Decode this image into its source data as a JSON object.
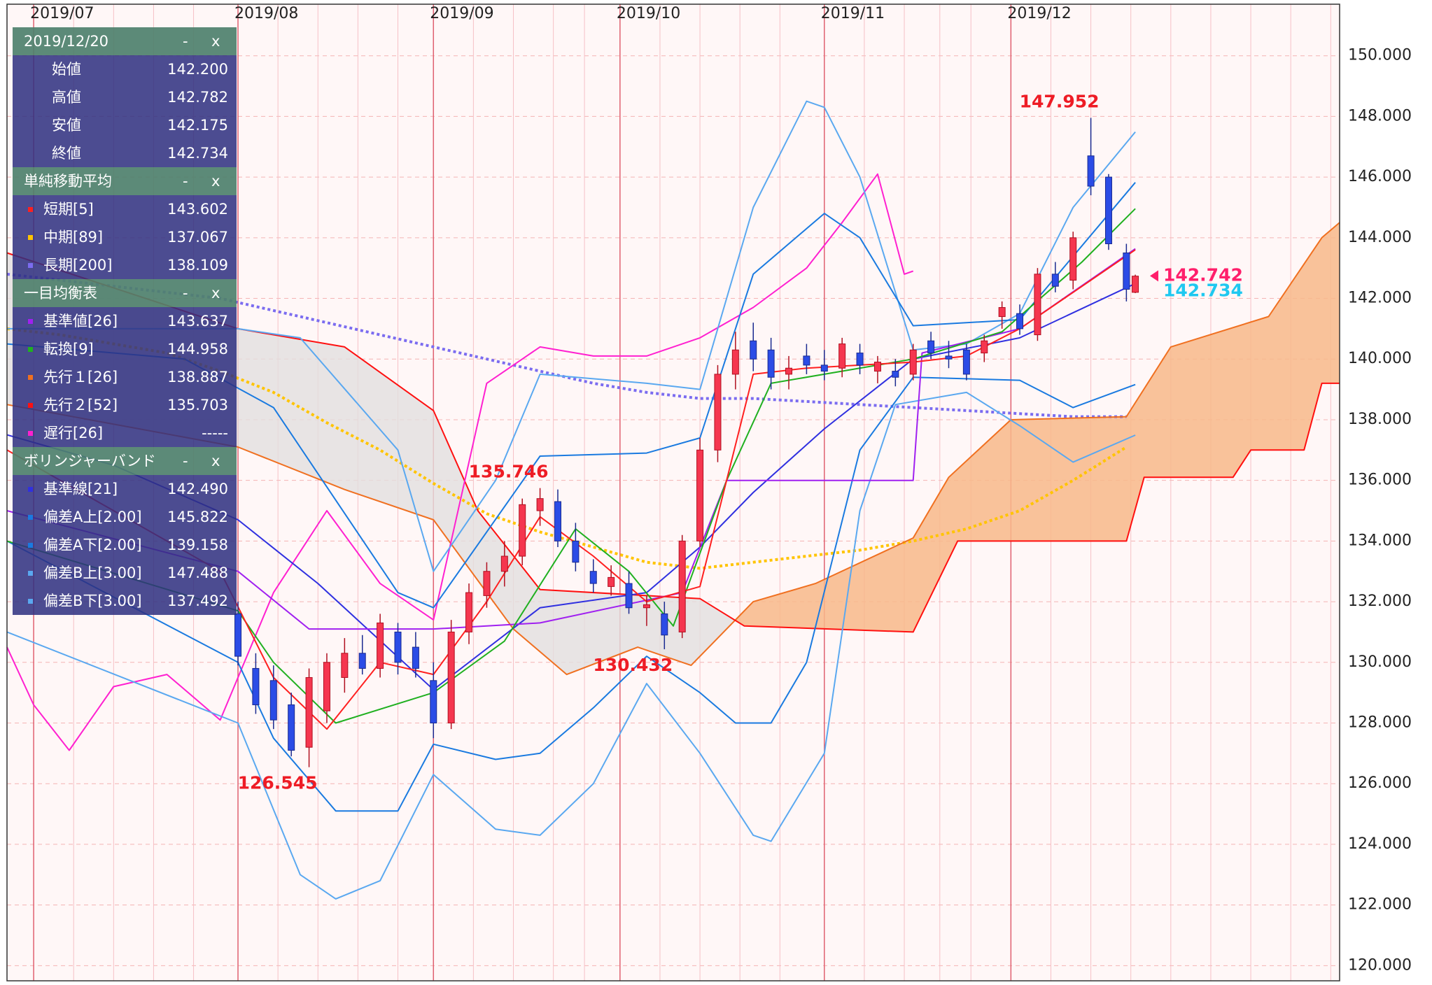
{
  "chart_data": {
    "type": "candlestick",
    "xlim": [
      0,
      150
    ],
    "ylim": [
      119.5,
      151.7
    ],
    "xticks": [
      {
        "value": 3,
        "label": "2019/07"
      },
      {
        "value": 26,
        "label": "2019/08"
      },
      {
        "value": 48,
        "label": "2019/09"
      },
      {
        "value": 69,
        "label": "2019/10"
      },
      {
        "value": 92,
        "label": "2019/11"
      },
      {
        "value": 113,
        "label": "2019/12"
      }
    ],
    "xminorticks": [
      7.5,
      12,
      16.5,
      21,
      30.5,
      35,
      39.5,
      44,
      52.5,
      57,
      61.5,
      65,
      73.5,
      78,
      82.5,
      87,
      96.5,
      101,
      105,
      108.5,
      117.5,
      122,
      126.5,
      131,
      135.5,
      140,
      144.5,
      149
    ],
    "yticks": [
      {
        "value": 120,
        "label": "120.000"
      },
      {
        "value": 122,
        "label": "122.000"
      },
      {
        "value": 124,
        "label": "124.000"
      },
      {
        "value": 126,
        "label": "126.000"
      },
      {
        "value": 128,
        "label": "128.000"
      },
      {
        "value": 130,
        "label": "130.000"
      },
      {
        "value": 132,
        "label": "132.000"
      },
      {
        "value": 134,
        "label": "134.000"
      },
      {
        "value": 136,
        "label": "136.000"
      },
      {
        "value": 138,
        "label": "138.000"
      },
      {
        "value": 140,
        "label": "140.000"
      },
      {
        "value": 142,
        "label": "142.000"
      },
      {
        "value": 144,
        "label": "144.000"
      },
      {
        "value": 146,
        "label": "146.000"
      },
      {
        "value": 148,
        "label": "148.000"
      },
      {
        "value": 150,
        "label": "150.000"
      }
    ],
    "grid": true,
    "up_color": "#f5364f",
    "down_color": "#2b4ce6",
    "x": [
      26,
      28,
      30,
      32,
      34,
      36,
      38,
      40,
      42,
      44,
      46,
      48,
      50,
      52,
      54,
      56,
      58,
      60,
      62,
      64,
      66,
      68,
      70,
      72,
      74,
      76,
      78,
      80,
      82,
      84,
      86,
      88,
      90,
      92,
      94,
      96,
      98,
      100,
      102,
      104,
      106,
      108,
      110,
      112,
      114,
      116,
      118,
      120,
      122,
      124,
      126,
      127
    ],
    "open": [
      131.6,
      129.8,
      129.4,
      128.6,
      127.2,
      128.4,
      129.5,
      130.3,
      129.8,
      131.0,
      130.5,
      129.4,
      128.0,
      131.0,
      132.2,
      133.0,
      133.5,
      135.0,
      135.3,
      134.0,
      133.0,
      132.5,
      132.6,
      131.8,
      131.6,
      131.0,
      134.0,
      137.0,
      139.5,
      140.6,
      140.3,
      139.5,
      140.1,
      139.8,
      139.7,
      140.2,
      139.6,
      139.6,
      139.5,
      140.6,
      140.1,
      140.3,
      140.2,
      141.4,
      141.5,
      140.8,
      142.8,
      142.6,
      146.7,
      146.0,
      143.5,
      142.2
    ],
    "high": [
      132.0,
      130.3,
      129.9,
      129.0,
      129.8,
      130.3,
      130.8,
      130.9,
      131.6,
      131.3,
      131.0,
      130.0,
      131.4,
      132.6,
      133.3,
      134.0,
      135.4,
      135.746,
      135.7,
      134.6,
      133.4,
      133.2,
      133.0,
      132.2,
      132.0,
      134.2,
      137.4,
      139.8,
      140.9,
      141.2,
      140.7,
      140.1,
      140.5,
      140.3,
      140.7,
      140.5,
      140.1,
      140.0,
      140.5,
      140.9,
      140.6,
      140.5,
      140.8,
      141.9,
      141.8,
      143.0,
      143.2,
      144.2,
      147.952,
      146.1,
      143.8,
      142.782
    ],
    "low": [
      129.9,
      128.3,
      127.8,
      126.9,
      126.545,
      128.0,
      129.0,
      129.6,
      129.5,
      129.6,
      129.5,
      127.5,
      127.8,
      130.6,
      131.8,
      132.5,
      133.2,
      134.5,
      133.8,
      133.0,
      132.3,
      132.2,
      131.6,
      131.2,
      130.432,
      130.8,
      133.8,
      136.6,
      139.0,
      139.6,
      139.0,
      139.0,
      139.5,
      139.3,
      139.4,
      139.5,
      139.2,
      139.1,
      139.3,
      140.0,
      139.7,
      139.3,
      139.9,
      141.0,
      140.8,
      140.6,
      142.2,
      142.3,
      145.4,
      143.6,
      141.9,
      142.175
    ],
    "close": [
      130.2,
      128.6,
      128.1,
      127.1,
      129.5,
      130.0,
      130.3,
      129.8,
      131.3,
      130.0,
      129.8,
      128.0,
      131.0,
      132.3,
      133.0,
      133.5,
      135.2,
      135.4,
      134.0,
      133.3,
      132.6,
      132.8,
      131.8,
      131.9,
      130.9,
      134.0,
      137.0,
      139.5,
      140.3,
      140.0,
      139.4,
      139.7,
      139.8,
      139.6,
      140.5,
      139.8,
      139.9,
      139.4,
      140.3,
      140.2,
      140.0,
      139.5,
      140.6,
      141.7,
      141.0,
      142.8,
      142.4,
      144.0,
      145.7,
      143.8,
      142.3,
      142.734
    ],
    "series": [
      {
        "color": "#7b6cf0",
        "dash": "dotted",
        "x": [
          0,
          6,
          12,
          18,
          24,
          30,
          36,
          42,
          48,
          54,
          60,
          66,
          72,
          78,
          84,
          90,
          96,
          102,
          108,
          114,
          120,
          126
        ],
        "values": [
          142.8,
          142.6,
          142.4,
          142.2,
          142.0,
          141.6,
          141.2,
          140.8,
          140.4,
          140.0,
          139.6,
          139.2,
          138.9,
          138.7,
          138.7,
          138.6,
          138.5,
          138.4,
          138.3,
          138.2,
          138.1,
          138.1
        ]
      },
      {
        "color": "#ffc400",
        "dash": "dotted",
        "x": [
          0,
          6,
          12,
          18,
          24,
          30,
          36,
          42,
          48,
          54,
          60,
          66,
          72,
          78,
          84,
          90,
          96,
          102,
          108,
          114,
          120,
          126
        ],
        "values": [
          141.0,
          140.8,
          140.5,
          140.2,
          139.6,
          138.9,
          137.9,
          137.0,
          135.9,
          134.9,
          134.3,
          133.8,
          133.3,
          133.1,
          133.3,
          133.5,
          133.7,
          134.0,
          134.4,
          135.0,
          136.0,
          137.1
        ]
      },
      {
        "color": "#f07020",
        "cloud": "a",
        "x": [
          0,
          26,
          38,
          48,
          57,
          63,
          71,
          77,
          84,
          91,
          102,
          106,
          113,
          126,
          131,
          142,
          148,
          150
        ],
        "values": [
          138.5,
          137.1,
          135.7,
          134.7,
          131.1,
          129.6,
          130.5,
          129.9,
          132.0,
          132.6,
          134.1,
          136.1,
          138.0,
          138.1,
          140.4,
          141.4,
          144.0,
          144.5
        ]
      },
      {
        "color": "#ff1010",
        "cloud": "b",
        "x": [
          0,
          26,
          38,
          48,
          53,
          60,
          78,
          83,
          102,
          107,
          126,
          128,
          138,
          140,
          146,
          148,
          150
        ],
        "values": [
          143.5,
          141.0,
          140.4,
          138.3,
          135.0,
          132.4,
          132.1,
          131.2,
          131.0,
          134.0,
          134.0,
          136.1,
          136.1,
          137.0,
          137.0,
          139.2,
          139.2
        ]
      },
      {
        "color": "#ff20d0",
        "x": [
          0,
          3,
          7,
          12,
          18,
          24,
          30,
          36,
          42,
          48,
          54,
          60,
          66,
          72,
          78,
          84,
          90,
          94,
          98,
          101,
          102
        ],
        "values": [
          130.5,
          128.6,
          127.1,
          129.2,
          129.6,
          128.1,
          132.3,
          135.0,
          132.6,
          131.4,
          139.2,
          140.4,
          140.1,
          140.1,
          140.7,
          141.7,
          143.0,
          144.5,
          146.1,
          142.8,
          142.9
        ]
      },
      {
        "color": "#5aa8f0",
        "x": [
          0,
          26,
          33,
          44,
          48,
          55,
          60,
          72,
          78,
          84,
          90,
          92,
          96,
          102,
          108,
          114,
          120,
          127
        ],
        "values": [
          141.0,
          141.0,
          140.7,
          137.0,
          133.0,
          136.0,
          139.5,
          139.2,
          139.0,
          145.0,
          148.5,
          148.3,
          146.0,
          140.3,
          140.5,
          141.5,
          145.0,
          147.488
        ]
      },
      {
        "color": "#5aa8f0",
        "x": [
          0,
          26,
          33,
          37,
          42,
          48,
          55,
          60,
          66,
          72,
          78,
          84,
          86,
          92,
          96,
          100,
          108,
          114,
          120,
          127
        ],
        "values": [
          131.0,
          128.0,
          123.0,
          122.2,
          122.8,
          126.3,
          124.5,
          124.3,
          126.0,
          129.3,
          127.0,
          124.3,
          124.1,
          127.0,
          135.0,
          138.5,
          138.9,
          137.8,
          136.6,
          137.492
        ]
      },
      {
        "color": "#1a7ae0",
        "x": [
          0,
          20,
          30,
          44,
          48,
          60,
          72,
          78,
          84,
          92,
          96,
          102,
          114,
          127
        ],
        "values": [
          140.5,
          140.0,
          138.4,
          132.3,
          131.8,
          136.8,
          136.9,
          137.4,
          142.8,
          144.8,
          144.0,
          141.1,
          141.3,
          145.822
        ]
      },
      {
        "color": "#1a7ae0",
        "x": [
          0,
          26,
          30,
          37,
          44,
          48,
          55,
          60,
          66,
          72,
          78,
          82,
          86,
          90,
          96,
          102,
          114,
          120,
          127
        ],
        "values": [
          134.0,
          130.0,
          127.5,
          125.1,
          125.1,
          127.3,
          126.8,
          127.0,
          128.5,
          130.2,
          129.0,
          128.0,
          128.0,
          130.0,
          137.0,
          139.4,
          139.3,
          138.4,
          139.158
        ]
      },
      {
        "color": "#3030e0",
        "x": [
          0,
          12,
          26,
          35,
          48,
          60,
          72,
          78,
          84,
          92,
          102,
          114,
          127
        ],
        "values": [
          137.5,
          136.5,
          134.7,
          132.6,
          129.1,
          131.8,
          132.3,
          133.8,
          135.6,
          137.7,
          140.0,
          140.7,
          142.49
        ]
      },
      {
        "color": "#a020f0",
        "x": [
          0,
          26,
          34,
          48,
          60,
          76,
          81,
          102,
          103,
          114,
          127
        ],
        "values": [
          135.0,
          133.0,
          131.1,
          131.1,
          131.3,
          132.3,
          136.0,
          136.0,
          140.2,
          141.0,
          143.637
        ]
      },
      {
        "color": "#20b020",
        "x": [
          0,
          26,
          30,
          37,
          48,
          56,
          64,
          70,
          75,
          81,
          86,
          102,
          112,
          121,
          127
        ],
        "values": [
          134.0,
          131.7,
          130.0,
          128.0,
          129.0,
          130.7,
          134.4,
          133.0,
          131.2,
          136.0,
          139.2,
          140.0,
          140.9,
          143.2,
          144.958
        ]
      },
      {
        "color": "#ff2020",
        "x": [
          0,
          6,
          12,
          18,
          24,
          30,
          36,
          42,
          48,
          54,
          60,
          66,
          72,
          78,
          84,
          90,
          96,
          102,
          108,
          114,
          120,
          127
        ],
        "values": [
          137.0,
          136.0,
          135.0,
          134.0,
          133.0,
          129.5,
          127.8,
          130.0,
          129.6,
          132.0,
          134.8,
          133.5,
          132.0,
          132.5,
          139.5,
          139.7,
          139.8,
          139.9,
          140.1,
          141.0,
          142.2,
          143.602
        ]
      }
    ],
    "annotations": [
      {
        "x": 122,
        "value": 147.952,
        "position": "above"
      },
      {
        "x": 60,
        "value": 135.746,
        "position": "above"
      },
      {
        "x": 74,
        "value": 130.432,
        "position": "below"
      },
      {
        "x": 34,
        "value": 126.545,
        "position": "below"
      }
    ],
    "price_markers": [
      {
        "value": 142.742,
        "color": "#ff1f6b"
      },
      {
        "value": 142.734,
        "color": "#1ec8f0"
      }
    ]
  },
  "panel": {
    "controls": [
      "-",
      "x"
    ],
    "sections": [
      {
        "title": "2019/12/20",
        "rows": [
          {
            "label": "始値",
            "value": "142.200"
          },
          {
            "label": "高値",
            "value": "142.782"
          },
          {
            "label": "安値",
            "value": "142.175"
          },
          {
            "label": "終値",
            "value": "142.734"
          }
        ]
      },
      {
        "title": "単純移動平均",
        "rows": [
          {
            "label": "短期[5]",
            "value": "143.602",
            "color": "#ff2020"
          },
          {
            "label": "中期[89]",
            "value": "137.067",
            "color": "#ffc400"
          },
          {
            "label": "長期[200]",
            "value": "138.109",
            "color": "#7b6cf0"
          }
        ]
      },
      {
        "title": "一目均衡表",
        "rows": [
          {
            "label": "基準値[26]",
            "value": "143.637",
            "color": "#a020f0"
          },
          {
            "label": "転換[9]",
            "value": "144.958",
            "color": "#20b020"
          },
          {
            "label": "先行１[26]",
            "value": "138.887",
            "color": "#f07020"
          },
          {
            "label": "先行２[52]",
            "value": "135.703",
            "color": "#ff1010"
          },
          {
            "label": "遅行[26]",
            "value": "-----",
            "color": "#ff20d0"
          }
        ]
      },
      {
        "title": "ボリンジャーバンド",
        "rows": [
          {
            "label": "基準線[21]",
            "value": "142.490",
            "color": "#3030e0"
          },
          {
            "label": "偏差A上[2.00]",
            "value": "145.822",
            "color": "#1a7ae0"
          },
          {
            "label": "偏差A下[2.00]",
            "value": "139.158",
            "color": "#1a7ae0"
          },
          {
            "label": "偏差B上[3.00]",
            "value": "147.488",
            "color": "#5aa8f0"
          },
          {
            "label": "偏差B下[3.00]",
            "value": "137.492",
            "color": "#5aa8f0"
          }
        ]
      }
    ]
  }
}
